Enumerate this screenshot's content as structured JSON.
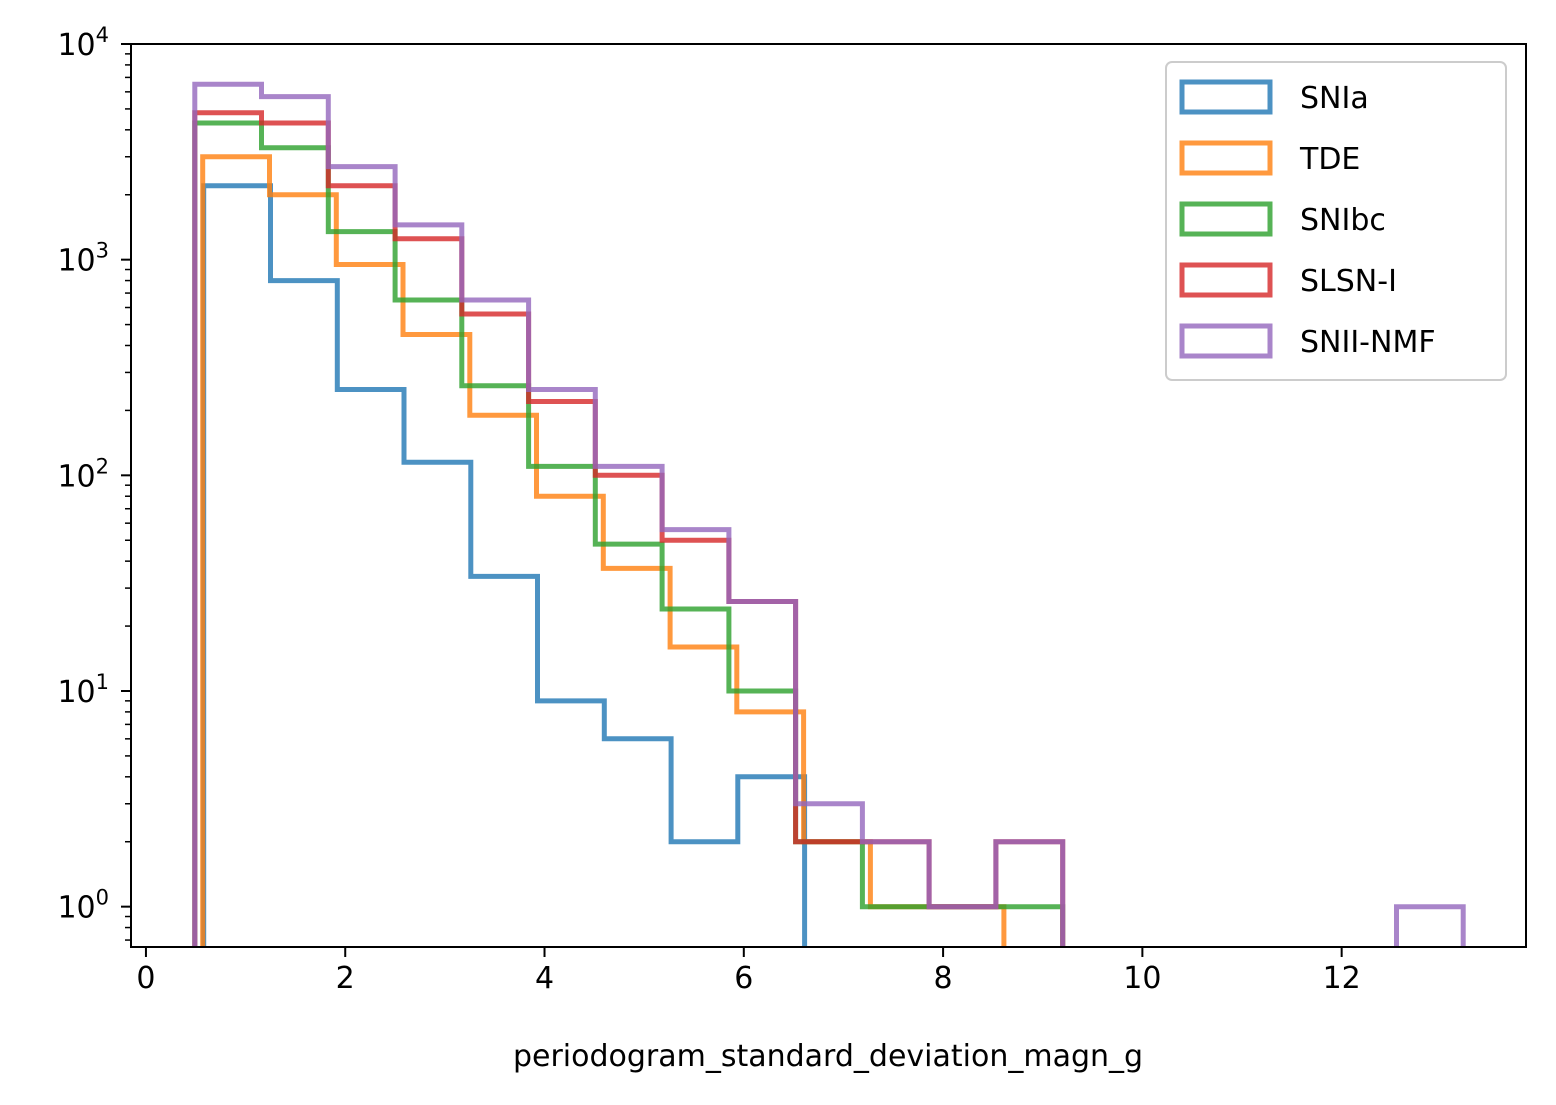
{
  "chart_data": {
    "type": "histogram",
    "title": "",
    "xlabel": "periodogram_standard_deviation_magn_g",
    "ylabel": "",
    "yscale": "log",
    "xlim": [
      -0.15,
      13.85
    ],
    "ylim": [
      0.65,
      10000
    ],
    "xticks": [
      0,
      2,
      4,
      6,
      8,
      10,
      12
    ],
    "yticks": [
      {
        "value": 1,
        "base": "10",
        "exp": "0"
      },
      {
        "value": 10,
        "base": "10",
        "exp": "1"
      },
      {
        "value": 100,
        "base": "10",
        "exp": "2"
      },
      {
        "value": 1000,
        "base": "10",
        "exp": "3"
      },
      {
        "value": 10000,
        "base": "10",
        "exp": "4"
      }
    ],
    "grid": false,
    "legend_position": "top-right",
    "series": [
      {
        "name": "SNIa",
        "color": "#1f77b4",
        "edges": [
          0.58,
          1.25,
          1.92,
          2.59,
          3.26,
          3.93,
          4.6,
          5.27,
          5.94,
          6.61
        ],
        "counts": [
          2200,
          800,
          250,
          115,
          34,
          9,
          6,
          2,
          4
        ]
      },
      {
        "name": "TDE",
        "color": "#ff7f0e",
        "edges": [
          0.57,
          1.24,
          1.91,
          2.58,
          3.25,
          3.92,
          4.59,
          5.26,
          5.93,
          6.6,
          7.27,
          7.94,
          8.61
        ],
        "counts": [
          3000,
          2000,
          950,
          450,
          190,
          80,
          37,
          16,
          8,
          2,
          1,
          1
        ]
      },
      {
        "name": "SNIbc",
        "color": "#2ca02c",
        "edges": [
          0.49,
          1.16,
          1.83,
          2.5,
          3.17,
          3.84,
          4.51,
          5.18,
          5.85,
          6.52,
          7.19,
          7.86,
          8.53,
          9.2
        ],
        "counts": [
          4300,
          3300,
          1350,
          650,
          260,
          110,
          48,
          24,
          10,
          2,
          1,
          1,
          1
        ]
      },
      {
        "name": "SLSN-I",
        "color": "#d62728",
        "edges": [
          0.49,
          1.16,
          1.83,
          2.5,
          3.17,
          3.84,
          4.51,
          5.18,
          5.85,
          6.52,
          7.19,
          7.86,
          8.53,
          9.2
        ],
        "counts": [
          4800,
          4300,
          2200,
          1250,
          560,
          220,
          100,
          50,
          26,
          2,
          2,
          1,
          2
        ]
      },
      {
        "name": "SNII-NMF",
        "color": "#9467bd",
        "edges": [
          0.49,
          1.16,
          1.83,
          2.5,
          3.17,
          3.84,
          4.51,
          5.18,
          5.85,
          6.52,
          7.19,
          7.86,
          8.53,
          9.2,
          9.87,
          10.54,
          11.21,
          11.88,
          12.55,
          13.22
        ],
        "counts": [
          6500,
          5700,
          2700,
          1450,
          650,
          250,
          110,
          56,
          26,
          3,
          2,
          1,
          2,
          0,
          0,
          0,
          0,
          0,
          1
        ]
      }
    ]
  }
}
